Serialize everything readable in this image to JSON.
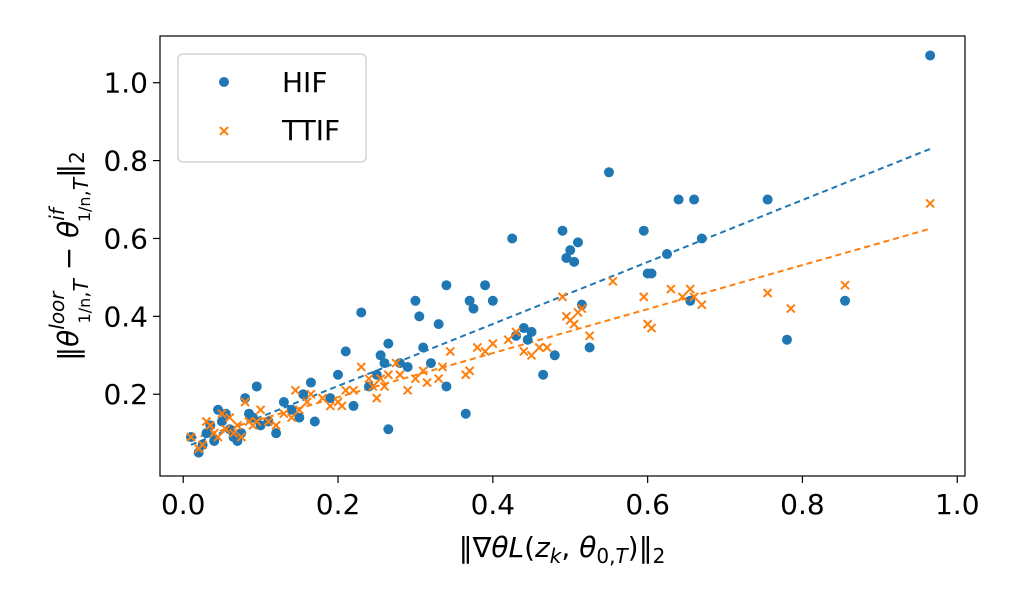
{
  "chart_data": {
    "type": "scatter",
    "title": "",
    "xlabel": "‖∇θL(zk, θ0,T)‖2",
    "ylabel": "‖θloor(1/n),T − θif(1/n),T‖2",
    "xlim": [
      -0.03,
      1.01
    ],
    "ylim": [
      -0.01,
      1.12
    ],
    "x_ticks": [
      0.0,
      0.2,
      0.4,
      0.6,
      0.8,
      1.0
    ],
    "x_tick_labels": [
      "0.0",
      "0.2",
      "0.4",
      "0.6",
      "0.8",
      "1.0"
    ],
    "y_ticks": [
      0.2,
      0.4,
      0.6,
      0.8,
      1.0
    ],
    "y_tick_labels": [
      "0.2",
      "0.4",
      "0.6",
      "0.8",
      "1.0"
    ],
    "grid": false,
    "legend_position": "top-left",
    "colors": {
      "HIF": "#1f77b4",
      "TTIF": "#ff7f0e"
    },
    "series": [
      {
        "name": "HIF",
        "marker": "circle",
        "trend": {
          "x": [
            0.01,
            0.965
          ],
          "y": [
            0.07,
            0.83
          ]
        },
        "points": [
          [
            0.01,
            0.09
          ],
          [
            0.02,
            0.05
          ],
          [
            0.025,
            0.07
          ],
          [
            0.03,
            0.1
          ],
          [
            0.035,
            0.12
          ],
          [
            0.04,
            0.08
          ],
          [
            0.045,
            0.16
          ],
          [
            0.05,
            0.13
          ],
          [
            0.055,
            0.15
          ],
          [
            0.06,
            0.11
          ],
          [
            0.065,
            0.09
          ],
          [
            0.07,
            0.08
          ],
          [
            0.075,
            0.1
          ],
          [
            0.08,
            0.19
          ],
          [
            0.085,
            0.15
          ],
          [
            0.09,
            0.14
          ],
          [
            0.095,
            0.22
          ],
          [
            0.1,
            0.12
          ],
          [
            0.11,
            0.13
          ],
          [
            0.12,
            0.1
          ],
          [
            0.13,
            0.18
          ],
          [
            0.14,
            0.16
          ],
          [
            0.15,
            0.14
          ],
          [
            0.155,
            0.2
          ],
          [
            0.165,
            0.23
          ],
          [
            0.17,
            0.13
          ],
          [
            0.19,
            0.19
          ],
          [
            0.2,
            0.25
          ],
          [
            0.21,
            0.31
          ],
          [
            0.22,
            0.17
          ],
          [
            0.23,
            0.41
          ],
          [
            0.24,
            0.22
          ],
          [
            0.25,
            0.25
          ],
          [
            0.255,
            0.3
          ],
          [
            0.26,
            0.28
          ],
          [
            0.265,
            0.33
          ],
          [
            0.265,
            0.11
          ],
          [
            0.28,
            0.28
          ],
          [
            0.29,
            0.27
          ],
          [
            0.3,
            0.44
          ],
          [
            0.305,
            0.4
          ],
          [
            0.31,
            0.32
          ],
          [
            0.32,
            0.28
          ],
          [
            0.33,
            0.38
          ],
          [
            0.34,
            0.48
          ],
          [
            0.34,
            0.22
          ],
          [
            0.365,
            0.15
          ],
          [
            0.37,
            0.44
          ],
          [
            0.375,
            0.42
          ],
          [
            0.39,
            0.48
          ],
          [
            0.4,
            0.44
          ],
          [
            0.425,
            0.6
          ],
          [
            0.43,
            0.35
          ],
          [
            0.44,
            0.37
          ],
          [
            0.445,
            0.34
          ],
          [
            0.45,
            0.36
          ],
          [
            0.465,
            0.25
          ],
          [
            0.48,
            0.3
          ],
          [
            0.49,
            0.62
          ],
          [
            0.495,
            0.55
          ],
          [
            0.5,
            0.57
          ],
          [
            0.505,
            0.54
          ],
          [
            0.51,
            0.59
          ],
          [
            0.515,
            0.43
          ],
          [
            0.525,
            0.32
          ],
          [
            0.55,
            0.77
          ],
          [
            0.595,
            0.62
          ],
          [
            0.6,
            0.51
          ],
          [
            0.605,
            0.51
          ],
          [
            0.625,
            0.56
          ],
          [
            0.64,
            0.7
          ],
          [
            0.655,
            0.44
          ],
          [
            0.66,
            0.7
          ],
          [
            0.67,
            0.6
          ],
          [
            0.755,
            0.7
          ],
          [
            0.78,
            0.34
          ],
          [
            0.855,
            0.44
          ],
          [
            0.965,
            1.07
          ]
        ]
      },
      {
        "name": "TTIF",
        "marker": "x",
        "trend": {
          "x": [
            0.01,
            0.965
          ],
          "y": [
            0.085,
            0.625
          ]
        },
        "points": [
          [
            0.01,
            0.09
          ],
          [
            0.02,
            0.06
          ],
          [
            0.025,
            0.07
          ],
          [
            0.03,
            0.13
          ],
          [
            0.035,
            0.12
          ],
          [
            0.04,
            0.1
          ],
          [
            0.045,
            0.09
          ],
          [
            0.05,
            0.15
          ],
          [
            0.055,
            0.11
          ],
          [
            0.06,
            0.14
          ],
          [
            0.065,
            0.1
          ],
          [
            0.07,
            0.12
          ],
          [
            0.075,
            0.09
          ],
          [
            0.08,
            0.18
          ],
          [
            0.085,
            0.13
          ],
          [
            0.09,
            0.12
          ],
          [
            0.095,
            0.13
          ],
          [
            0.1,
            0.16
          ],
          [
            0.11,
            0.13
          ],
          [
            0.12,
            0.12
          ],
          [
            0.13,
            0.15
          ],
          [
            0.14,
            0.14
          ],
          [
            0.145,
            0.21
          ],
          [
            0.15,
            0.16
          ],
          [
            0.16,
            0.18
          ],
          [
            0.165,
            0.2
          ],
          [
            0.18,
            0.19
          ],
          [
            0.19,
            0.17
          ],
          [
            0.2,
            0.18
          ],
          [
            0.205,
            0.17
          ],
          [
            0.21,
            0.21
          ],
          [
            0.22,
            0.21
          ],
          [
            0.23,
            0.27
          ],
          [
            0.24,
            0.24
          ],
          [
            0.245,
            0.22
          ],
          [
            0.25,
            0.19
          ],
          [
            0.255,
            0.24
          ],
          [
            0.26,
            0.22
          ],
          [
            0.265,
            0.25
          ],
          [
            0.275,
            0.28
          ],
          [
            0.28,
            0.25
          ],
          [
            0.29,
            0.21
          ],
          [
            0.3,
            0.24
          ],
          [
            0.31,
            0.26
          ],
          [
            0.315,
            0.23
          ],
          [
            0.33,
            0.24
          ],
          [
            0.335,
            0.27
          ],
          [
            0.345,
            0.31
          ],
          [
            0.365,
            0.25
          ],
          [
            0.37,
            0.26
          ],
          [
            0.38,
            0.32
          ],
          [
            0.39,
            0.31
          ],
          [
            0.4,
            0.33
          ],
          [
            0.42,
            0.34
          ],
          [
            0.43,
            0.36
          ],
          [
            0.44,
            0.31
          ],
          [
            0.45,
            0.3
          ],
          [
            0.46,
            0.32
          ],
          [
            0.47,
            0.32
          ],
          [
            0.49,
            0.45
          ],
          [
            0.495,
            0.4
          ],
          [
            0.5,
            0.39
          ],
          [
            0.505,
            0.38
          ],
          [
            0.51,
            0.41
          ],
          [
            0.515,
            0.42
          ],
          [
            0.525,
            0.35
          ],
          [
            0.555,
            0.49
          ],
          [
            0.595,
            0.45
          ],
          [
            0.6,
            0.38
          ],
          [
            0.605,
            0.37
          ],
          [
            0.63,
            0.47
          ],
          [
            0.645,
            0.45
          ],
          [
            0.655,
            0.47
          ],
          [
            0.66,
            0.45
          ],
          [
            0.67,
            0.43
          ],
          [
            0.755,
            0.46
          ],
          [
            0.785,
            0.42
          ],
          [
            0.855,
            0.48
          ],
          [
            0.965,
            0.69
          ]
        ]
      }
    ]
  }
}
